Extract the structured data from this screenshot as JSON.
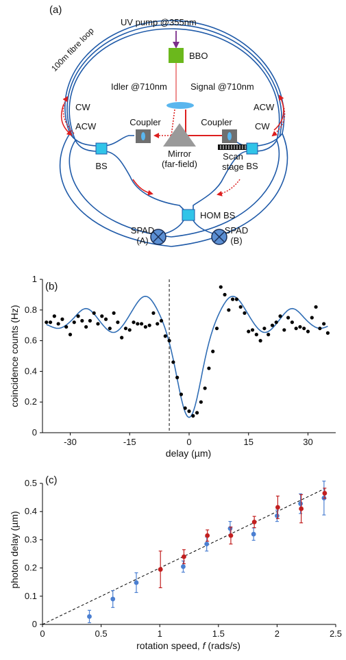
{
  "colors": {
    "fiber": "#1f5aa8",
    "red": "#dd1e1e",
    "purple": "#7b2d8b",
    "bbo": "#6bb81c",
    "bs": "#31c4e8",
    "spad": "#5b8fd3",
    "lens": "#5ab6ee",
    "mirror": "#9a9a9a",
    "fit_line": "#2f6db5",
    "blue_points": "#4b7fd1",
    "red_points": "#c21f1f",
    "axis": "#000000"
  },
  "panel_a": {
    "label": "(a)",
    "fibre_loop": "100m fibre loop",
    "uv_pump": "UV pump @355nm",
    "bbo": "BBO",
    "idler": "Idler @710nm",
    "signal": "Signal @710nm",
    "cw_left": "CW",
    "acw_left": "ACW",
    "acw_right": "ACW",
    "cw_right": "CW",
    "coupler_left": "Coupler",
    "coupler_right": "Coupler",
    "mirror_line1": "Mirror",
    "mirror_line2": "(far-field)",
    "scan_line1": "Scan",
    "scan_line2": "stage",
    "bs_left": "BS",
    "bs_right": "BS",
    "hom_bs": "HOM BS",
    "spad_a_line1": "SPAD",
    "spad_a_line2": "(A)",
    "spad_b_line1": "SPAD",
    "spad_b_line2": "(B)"
  },
  "chart_data": [
    {
      "type": "scatter",
      "panel_label": "(b)",
      "xlabel": "delay (µm)",
      "ylabel": "coincidence counts (Hz)",
      "xlim": [
        -37,
        37
      ],
      "ylim": [
        0,
        1
      ],
      "xticks": [
        "-30",
        "-15",
        "0",
        "15",
        "30"
      ],
      "yticks": [
        "0",
        "0.2",
        "0.4",
        "0.6",
        "0.8",
        "1"
      ],
      "vline_x": -5,
      "series": [
        {
          "points": [
            [
              -36,
              0.72
            ],
            [
              -35,
              0.72
            ],
            [
              -34,
              0.76
            ],
            [
              -33,
              0.71
            ],
            [
              -32,
              0.74
            ],
            [
              -31,
              0.69
            ],
            [
              -30,
              0.64
            ],
            [
              -29,
              0.72
            ],
            [
              -28,
              0.76
            ],
            [
              -27,
              0.73
            ],
            [
              -26,
              0.69
            ],
            [
              -25,
              0.73
            ],
            [
              -24,
              0.78
            ],
            [
              -23,
              0.71
            ],
            [
              -22,
              0.76
            ],
            [
              -21,
              0.74
            ],
            [
              -20,
              0.68
            ],
            [
              -19,
              0.78
            ],
            [
              -18,
              0.72
            ],
            [
              -17,
              0.62
            ],
            [
              -16,
              0.68
            ],
            [
              -15,
              0.67
            ],
            [
              -14,
              0.72
            ],
            [
              -13,
              0.71
            ],
            [
              -12,
              0.71
            ],
            [
              -11,
              0.69
            ],
            [
              -10,
              0.7
            ],
            [
              -9,
              0.78
            ],
            [
              -8,
              0.71
            ],
            [
              -7,
              0.73
            ],
            [
              -6,
              0.63
            ],
            [
              -5,
              0.6
            ],
            [
              -4,
              0.46
            ],
            [
              -3,
              0.36
            ],
            [
              -2,
              0.25
            ],
            [
              -1,
              0.16
            ],
            [
              0,
              0.14
            ],
            [
              1,
              0.11
            ],
            [
              2,
              0.13
            ],
            [
              3,
              0.2
            ],
            [
              4,
              0.29
            ],
            [
              5,
              0.42
            ],
            [
              6,
              0.53
            ],
            [
              7,
              0.68
            ],
            [
              8,
              0.95
            ],
            [
              9,
              0.9
            ],
            [
              10,
              0.8
            ],
            [
              11,
              0.87
            ],
            [
              12,
              0.87
            ],
            [
              13,
              0.82
            ],
            [
              14,
              0.78
            ],
            [
              15,
              0.66
            ],
            [
              16,
              0.67
            ],
            [
              17,
              0.64
            ],
            [
              18,
              0.6
            ],
            [
              19,
              0.68
            ],
            [
              20,
              0.64
            ],
            [
              21,
              0.7
            ],
            [
              22,
              0.72
            ],
            [
              23,
              0.76
            ],
            [
              24,
              0.67
            ],
            [
              25,
              0.75
            ],
            [
              26,
              0.72
            ],
            [
              27,
              0.68
            ],
            [
              28,
              0.69
            ],
            [
              29,
              0.68
            ],
            [
              30,
              0.66
            ],
            [
              31,
              0.75
            ],
            [
              32,
              0.82
            ],
            [
              33,
              0.68
            ],
            [
              34,
              0.71
            ],
            [
              35,
              0.65
            ]
          ]
        }
      ],
      "fit": {
        "style": "damped-oscillation dip",
        "baseline": 0.72,
        "center": 0,
        "min_value": 0.1,
        "peak_value": 0.88
      }
    },
    {
      "type": "scatter",
      "panel_label": "(c)",
      "xlabel_prefix": "rotation speed, ",
      "xlabel_italic": "f",
      "xlabel_suffix": " (rads/s)",
      "ylabel": "photon delay (µm)",
      "xlim": [
        0,
        2.5
      ],
      "ylim": [
        0,
        0.5
      ],
      "xticks": [
        "0",
        "0.5",
        "1",
        "1.5",
        "2",
        "2.5"
      ],
      "yticks": [
        "0",
        "0.1",
        "0.2",
        "0.3",
        "0.4",
        "0.5"
      ],
      "trend_line": [
        [
          0,
          0
        ],
        [
          2.4,
          0.48
        ]
      ],
      "series": [
        {
          "color": "#4b7fd1",
          "points": [
            {
              "x": 0.4,
              "y": 0.028,
              "err": 0.022
            },
            {
              "x": 0.6,
              "y": 0.09,
              "err": 0.03
            },
            {
              "x": 0.8,
              "y": 0.148,
              "err": 0.035
            },
            {
              "x": 1.2,
              "y": 0.205,
              "err": 0.02
            },
            {
              "x": 1.4,
              "y": 0.285,
              "err": 0.025
            },
            {
              "x": 1.6,
              "y": 0.34,
              "err": 0.025
            },
            {
              "x": 1.8,
              "y": 0.32,
              "err": 0.022
            },
            {
              "x": 2.0,
              "y": 0.385,
              "err": 0.02
            },
            {
              "x": 2.2,
              "y": 0.428,
              "err": 0.035
            },
            {
              "x": 2.4,
              "y": 0.448,
              "err": 0.06
            }
          ]
        },
        {
          "color": "#c21f1f",
          "points": [
            {
              "x": 1.0,
              "y": 0.195,
              "err": 0.065
            },
            {
              "x": 1.2,
              "y": 0.24,
              "err": 0.025
            },
            {
              "x": 1.4,
              "y": 0.315,
              "err": 0.02
            },
            {
              "x": 1.6,
              "y": 0.315,
              "err": 0.03
            },
            {
              "x": 1.8,
              "y": 0.363,
              "err": 0.02
            },
            {
              "x": 2.0,
              "y": 0.415,
              "err": 0.04
            },
            {
              "x": 2.2,
              "y": 0.41,
              "err": 0.05
            },
            {
              "x": 2.4,
              "y": 0.465,
              "err": 0.018
            }
          ]
        }
      ]
    }
  ]
}
